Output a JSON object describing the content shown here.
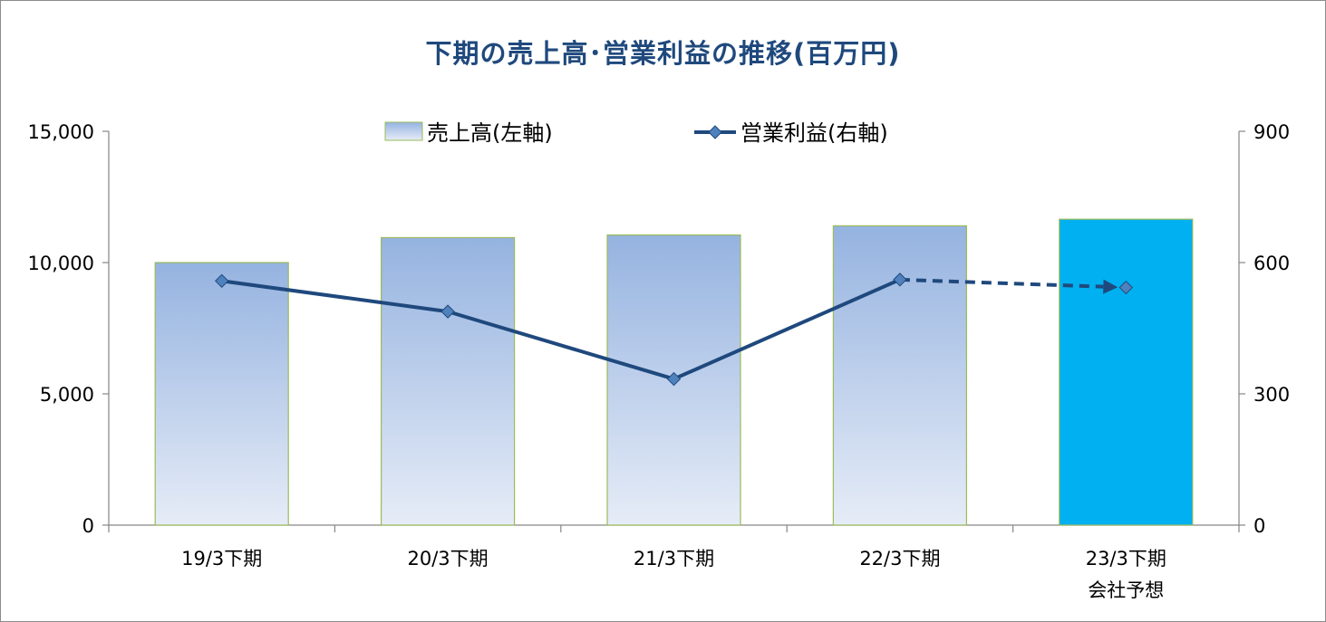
{
  "chart_data": {
    "type": "bar",
    "title": "下期の売上高･営業利益の推移(百万円)",
    "categories": [
      [
        "19/3下期"
      ],
      [
        "20/3下期"
      ],
      [
        "21/3下期"
      ],
      [
        "22/3下期"
      ],
      [
        "23/3下期",
        "会社予想"
      ]
    ],
    "left_axis": {
      "ylim": [
        0,
        15000
      ],
      "ticks": [
        "0",
        "5,000",
        "10,000",
        "15,000"
      ],
      "tick_values": [
        0,
        5000,
        10000,
        15000
      ]
    },
    "right_axis": {
      "ylim": [
        0,
        900
      ],
      "ticks": [
        "0",
        "300",
        "600",
        "900"
      ],
      "tick_values": [
        0,
        300,
        600,
        900
      ]
    },
    "grid": false,
    "legend_position": "top",
    "series": [
      {
        "name": "売上高(左軸)",
        "type": "bar",
        "axis": "left",
        "values": [
          10000,
          10950,
          11050,
          11400,
          11650
        ]
      },
      {
        "name": "営業利益(右軸)",
        "type": "line",
        "axis": "right",
        "values": [
          558,
          488,
          334,
          561,
          543
        ],
        "forecast_from_index": 3
      }
    ],
    "colors": {
      "bar_gradient_top": "#95b3e0",
      "bar_gradient_bottom": "#e6ecf7",
      "bar_outline": "#9bbb59",
      "forecast_bar": "#00b0f0",
      "line": "#1f497d",
      "marker": "#4f81bd",
      "title": "#1f497d"
    }
  }
}
